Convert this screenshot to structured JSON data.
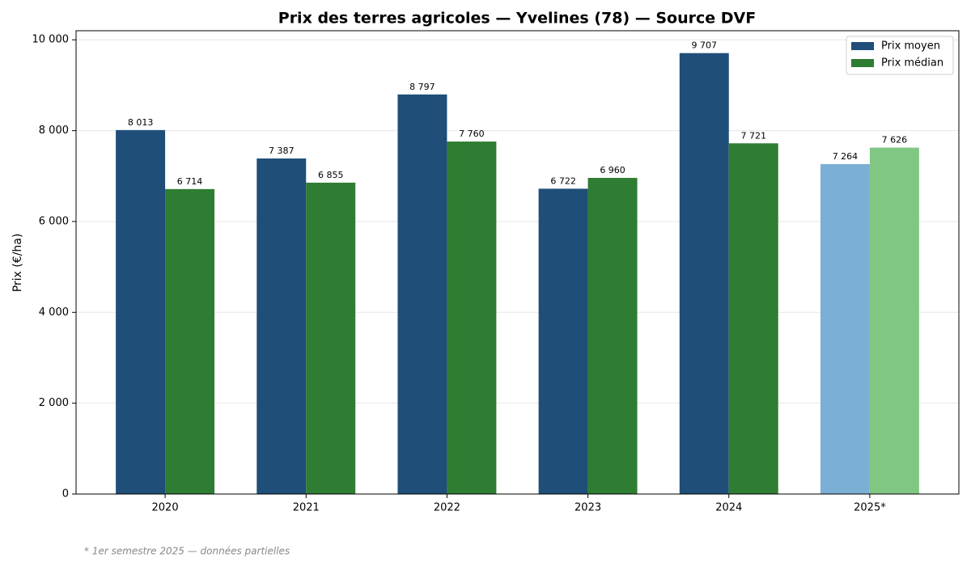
{
  "chart_data": {
    "type": "bar",
    "title": "Prix des terres agricoles — Yvelines (78) — Source DVF",
    "y_label": "Prix (€/ha)",
    "footnote": "* 1er semestre 2025 — données partielles",
    "categories": [
      "2020",
      "2021",
      "2022",
      "2023",
      "2024",
      "2025*"
    ],
    "series": [
      {
        "name": "Prix moyen",
        "color": "#1f4e79",
        "colors": [
          "#1f4e79",
          "#1f4e79",
          "#1f4e79",
          "#1f4e79",
          "#1f4e79",
          "#7bafd4"
        ],
        "values": [
          8013,
          7387,
          8797,
          6722,
          9707,
          7264
        ],
        "value_labels": [
          "8 013",
          "7 387",
          "8 797",
          "6 722",
          "9 707",
          "7 264"
        ]
      },
      {
        "name": "Prix médian",
        "color": "#2e7d32",
        "colors": [
          "#2e7d32",
          "#2e7d32",
          "#2e7d32",
          "#2e7d32",
          "#2e7d32",
          "#81c784"
        ],
        "values": [
          6714,
          6855,
          7760,
          6960,
          7721,
          7626
        ],
        "value_labels": [
          "6 714",
          "6 855",
          "7 760",
          "6 960",
          "7 721",
          "7 626"
        ]
      }
    ],
    "ylim": [
      0,
      10200
    ],
    "yticks": [
      0,
      {
        "value": 2000,
        "label": "2 000"
      },
      {
        "value": 4000,
        "label": "4 000"
      },
      {
        "value": 6000,
        "label": "6 000"
      },
      {
        "value": 8000,
        "label": "8 000"
      },
      {
        "value": 10000,
        "label": "10 000"
      }
    ],
    "grid": true,
    "legend": "upper right"
  }
}
